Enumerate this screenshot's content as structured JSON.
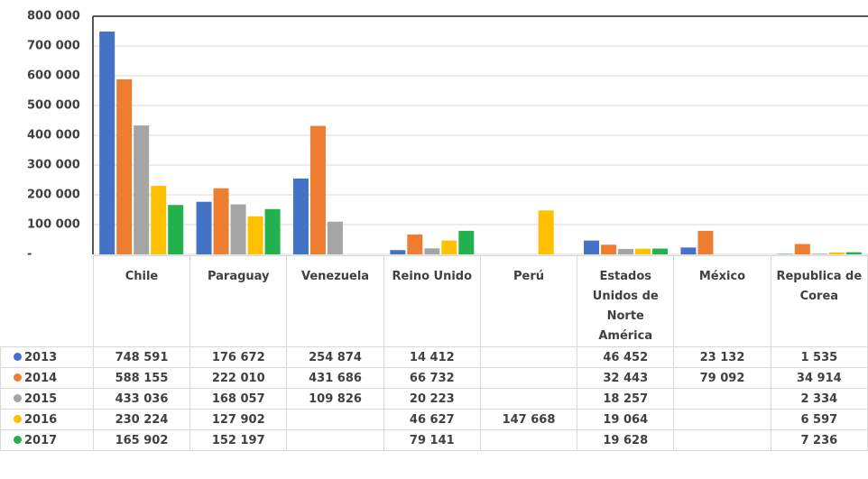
{
  "chart_data": {
    "type": "bar",
    "categories": [
      "Chile",
      "Paraguay",
      "Venezuela",
      "Reino Unido",
      "Perú",
      "Estados Unidos de Norte América",
      "México",
      "Republica de Corea"
    ],
    "series": [
      {
        "name": "2013",
        "color": "#4472c4",
        "values": [
          748591,
          176672,
          254874,
          14412,
          null,
          46452,
          23132,
          1535
        ],
        "value_labels": [
          "748 591",
          "176 672",
          "254 874",
          "14 412",
          null,
          "46 452",
          "23 132",
          "1 535"
        ]
      },
      {
        "name": "2014",
        "color": "#ed7d31",
        "values": [
          588155,
          222010,
          431686,
          66732,
          null,
          32443,
          79092,
          34914
        ],
        "value_labels": [
          "588 155",
          "222 010",
          "431 686",
          "66 732",
          null,
          "32 443",
          "79 092",
          "34 914"
        ]
      },
      {
        "name": "2015",
        "color": "#a5a5a5",
        "values": [
          433036,
          168057,
          109826,
          20223,
          null,
          18257,
          null,
          2334
        ],
        "value_labels": [
          "433 036",
          "168 057",
          "109 826",
          "20 223",
          null,
          "18 257",
          null,
          "2 334"
        ]
      },
      {
        "name": "2016",
        "color": "#ffc000",
        "values": [
          230224,
          127902,
          null,
          46627,
          147668,
          19064,
          null,
          6597
        ],
        "value_labels": [
          "230 224",
          "127 902",
          null,
          "46 627",
          "147 668",
          "19 064",
          null,
          "6 597"
        ]
      },
      {
        "name": "2017",
        "color": "#22b14c",
        "values": [
          165902,
          152197,
          null,
          79141,
          null,
          19628,
          null,
          7236
        ],
        "value_labels": [
          "165 902",
          "152 197",
          null,
          "79 141",
          null,
          "19 628",
          null,
          "7 236"
        ]
      }
    ],
    "ylim": [
      0,
      800000
    ],
    "yticks": [
      {
        "value": 0,
        "label": "-"
      },
      {
        "value": 100000,
        "label": "100 000"
      },
      {
        "value": 200000,
        "label": "200 000"
      },
      {
        "value": 300000,
        "label": "300 000"
      },
      {
        "value": 400000,
        "label": "400 000"
      },
      {
        "value": 500000,
        "label": "500 000"
      },
      {
        "value": 600000,
        "label": "600 000"
      },
      {
        "value": 700000,
        "label": "700 000"
      },
      {
        "value": 800000,
        "label": "800 000"
      }
    ],
    "grid": true
  }
}
